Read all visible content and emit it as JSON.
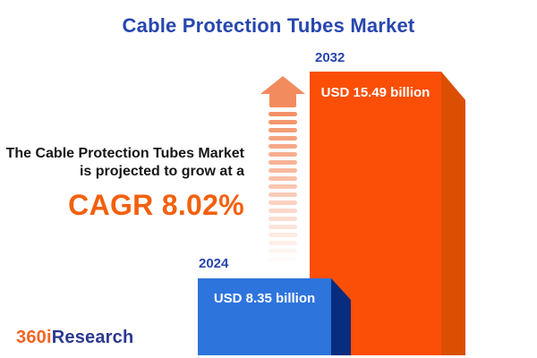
{
  "title": "Cable Protection Tubes Market",
  "description": {
    "line1": "The Cable Protection Tubes Market",
    "line2": "is projected to grow at a",
    "cagr_text": "CAGR 8.02%"
  },
  "chart_data": {
    "type": "bar",
    "title": "Cable Protection Tubes Market",
    "categories": [
      "2024",
      "2032"
    ],
    "values": [
      8.35,
      15.49
    ],
    "unit": "USD billion",
    "value_labels": [
      "USD 8.35 billion",
      "USD 15.49 billion"
    ],
    "cagr_percent": 8.02,
    "legend_position": "none",
    "grid": false,
    "style": "3d-infographic-bars",
    "annotations": [
      "upward striped growth arrow between text and 2032 bar"
    ]
  },
  "bars": [
    {
      "year": "2024",
      "label": "USD 8.35 billion"
    },
    {
      "year": "2032",
      "label": "USD 15.49 billion"
    }
  ],
  "logo": {
    "part1": "360i",
    "part2": "Research"
  },
  "colors": {
    "title_blue": "#2746AE",
    "accent_orange": "#F3600D",
    "bar_2024_face": "#2E74DD",
    "bar_2024_side": "#082C7E",
    "bar_2032_face": "#FB4E07",
    "bar_2032_side": "#DB4F03",
    "arrow_orange": "#F28B5E",
    "logo_orange": "#F26522",
    "logo_blue": "#2B3990",
    "background": "#FFFFFF",
    "body_text": "#161616"
  }
}
